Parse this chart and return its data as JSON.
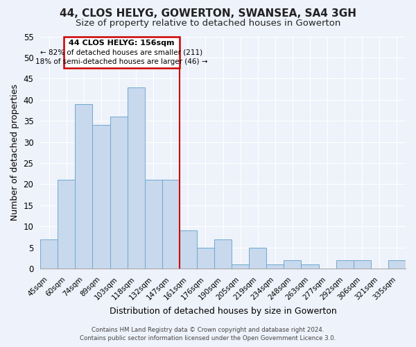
{
  "title": "44, CLOS HELYG, GOWERTON, SWANSEA, SA4 3GH",
  "subtitle": "Size of property relative to detached houses in Gowerton",
  "xlabel": "Distribution of detached houses by size in Gowerton",
  "ylabel": "Number of detached properties",
  "bar_labels": [
    "45sqm",
    "60sqm",
    "74sqm",
    "89sqm",
    "103sqm",
    "118sqm",
    "132sqm",
    "147sqm",
    "161sqm",
    "176sqm",
    "190sqm",
    "205sqm",
    "219sqm",
    "234sqm",
    "248sqm",
    "263sqm",
    "277sqm",
    "292sqm",
    "306sqm",
    "321sqm",
    "335sqm"
  ],
  "bar_values": [
    7,
    21,
    39,
    34,
    36,
    43,
    21,
    21,
    9,
    5,
    7,
    1,
    5,
    1,
    2,
    1,
    0,
    2,
    2,
    0,
    2
  ],
  "bar_color": "#c8d8ed",
  "bar_edge_color": "#6fa8d0",
  "vline_color": "#cc0000",
  "ylim": [
    0,
    55
  ],
  "yticks": [
    0,
    5,
    10,
    15,
    20,
    25,
    30,
    35,
    40,
    45,
    50,
    55
  ],
  "annotation_title": "44 CLOS HELYG: 156sqm",
  "annotation_line1": "← 82% of detached houses are smaller (211)",
  "annotation_line2": "18% of semi-detached houses are larger (46) →",
  "annotation_box_color": "#ffffff",
  "annotation_box_edge": "#cc0000",
  "footer_line1": "Contains HM Land Registry data © Crown copyright and database right 2024.",
  "footer_line2": "Contains public sector information licensed under the Open Government Licence 3.0.",
  "background_color": "#eef2fa",
  "plot_bg_color": "#eef2fa",
  "title_fontsize": 11,
  "subtitle_fontsize": 9.5,
  "grid_color": "#ffffff"
}
